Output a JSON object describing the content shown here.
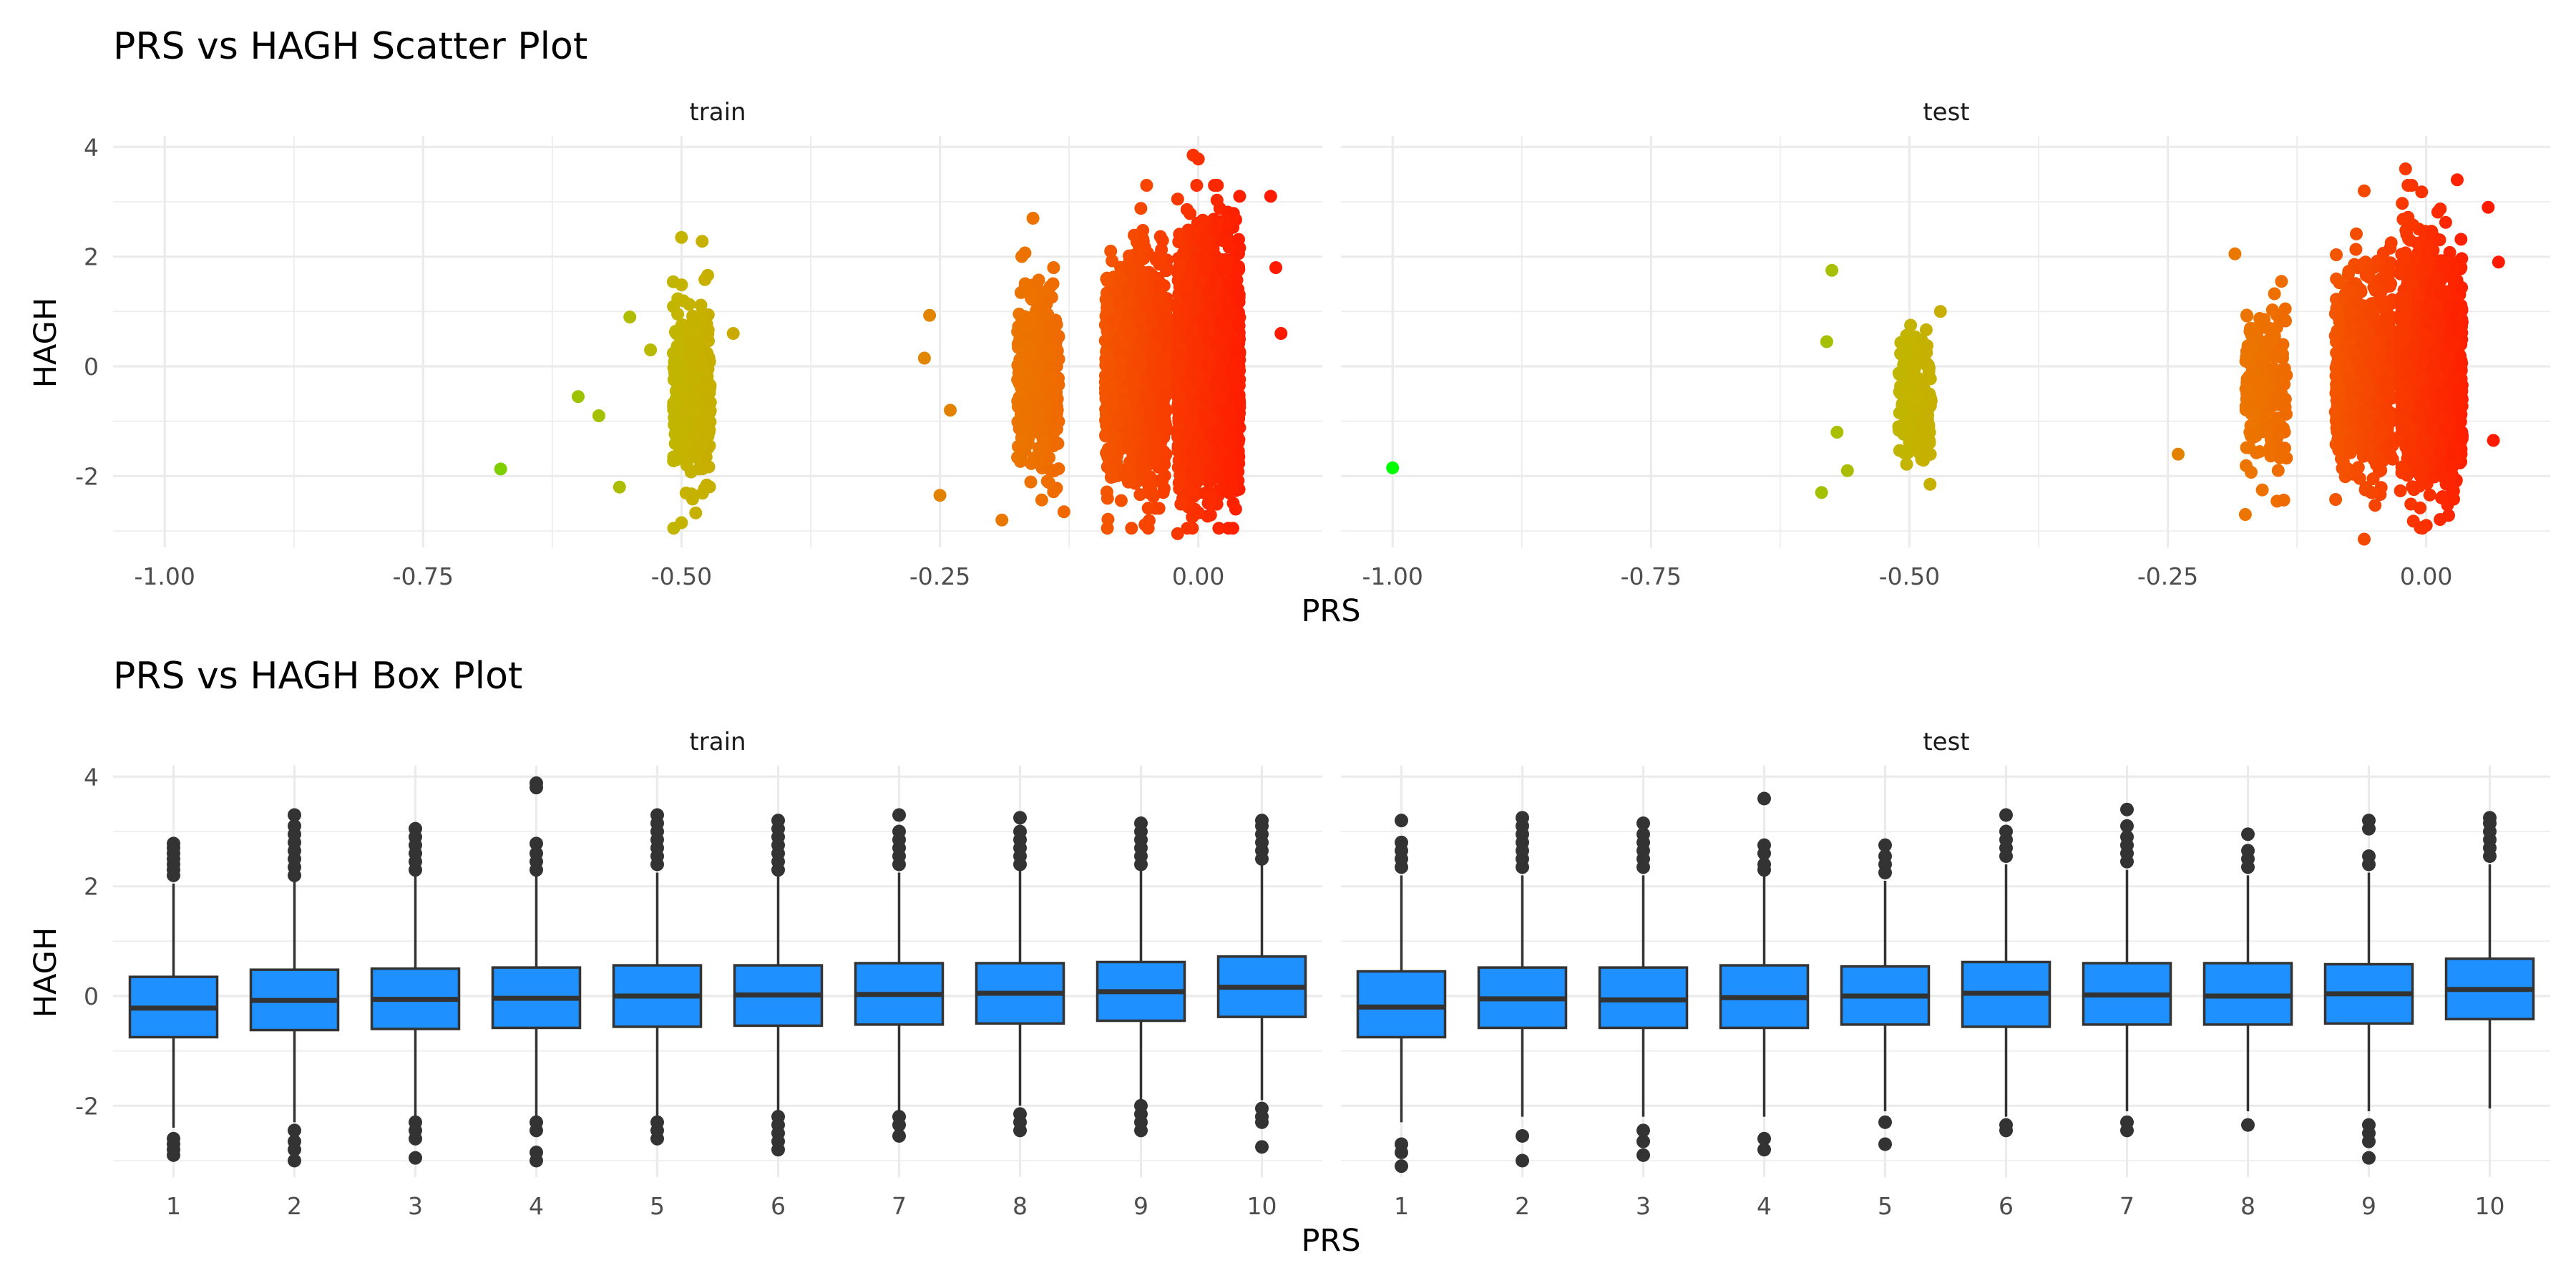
{
  "figure": {
    "panels_order": [
      "train",
      "test"
    ]
  },
  "chart_data": [
    {
      "type": "scatter",
      "title": "PRS vs HAGH Scatter Plot",
      "xlabel": "PRS",
      "ylabel": "HAGH",
      "facets": [
        "train",
        "test"
      ],
      "xlim": [
        -1.05,
        0.12
      ],
      "ylim": [
        -3.3,
        4.2
      ],
      "x_ticks": [
        -1.0,
        -0.75,
        -0.5,
        -0.25,
        0.0
      ],
      "x_tick_labels": [
        "-1.00",
        "-0.75",
        "-0.50",
        "-0.25",
        "0.00"
      ],
      "y_ticks": [
        -2,
        0,
        2,
        4
      ],
      "y_tick_labels": [
        "-2",
        "0",
        "2",
        "4"
      ],
      "color_mapping": "points colored by PRS: green (-1.0) through yellow-olive (-0.5) and orange to red (0.05)",
      "colors": {
        "low": "#00ff00",
        "mid": "#c4b400",
        "orange": "#ee7000",
        "high": "#ff1a00"
      },
      "grid": true,
      "legend": "none",
      "series": [
        {
          "name": "train",
          "clusters": [
            {
              "x_center": -0.49,
              "x_spread": 0.018,
              "y_mean": -0.5,
              "y_sd": 0.75,
              "n": 380
            },
            {
              "x_center": -0.155,
              "x_spread": 0.02,
              "y_mean": -0.3,
              "y_sd": 0.75,
              "n": 420
            },
            {
              "x_center": -0.06,
              "x_spread": 0.03,
              "y_mean": -0.1,
              "y_sd": 0.95,
              "n": 1400
            },
            {
              "x_center": 0.01,
              "x_spread": 0.03,
              "y_mean": 0.05,
              "y_sd": 1.0,
              "n": 2800
            }
          ],
          "points": [
            {
              "x": -0.675,
              "y": -1.87
            },
            {
              "x": -0.6,
              "y": -0.55
            },
            {
              "x": -0.58,
              "y": -0.9
            },
            {
              "x": -0.55,
              "y": 0.9
            },
            {
              "x": -0.56,
              "y": -2.2
            },
            {
              "x": -0.53,
              "y": 0.3
            },
            {
              "x": -0.5,
              "y": 2.35
            },
            {
              "x": -0.48,
              "y": 2.28
            },
            {
              "x": -0.5,
              "y": -2.85
            },
            {
              "x": -0.45,
              "y": 0.6
            },
            {
              "x": -0.26,
              "y": 0.93
            },
            {
              "x": -0.265,
              "y": 0.15
            },
            {
              "x": -0.24,
              "y": -0.8
            },
            {
              "x": -0.25,
              "y": -2.35
            },
            {
              "x": -0.19,
              "y": -2.8
            },
            {
              "x": -0.16,
              "y": 2.7
            },
            {
              "x": -0.14,
              "y": 1.8
            },
            {
              "x": -0.13,
              "y": -2.65
            },
            {
              "x": -0.05,
              "y": 3.3
            },
            {
              "x": -0.02,
              "y": 3.05
            },
            {
              "x": -0.02,
              "y": -3.05
            },
            {
              "x": -0.005,
              "y": 3.85
            },
            {
              "x": 0.0,
              "y": 3.78
            },
            {
              "x": 0.04,
              "y": 3.1
            },
            {
              "x": 0.075,
              "y": 1.8
            },
            {
              "x": 0.08,
              "y": 0.6
            },
            {
              "x": 0.07,
              "y": 3.1
            }
          ]
        },
        {
          "name": "test",
          "clusters": [
            {
              "x_center": -0.495,
              "x_spread": 0.016,
              "y_mean": -0.6,
              "y_sd": 0.6,
              "n": 160
            },
            {
              "x_center": -0.155,
              "x_spread": 0.02,
              "y_mean": -0.4,
              "y_sd": 0.7,
              "n": 200
            },
            {
              "x_center": -0.06,
              "x_spread": 0.028,
              "y_mean": -0.1,
              "y_sd": 0.9,
              "n": 700
            },
            {
              "x_center": 0.005,
              "x_spread": 0.03,
              "y_mean": 0.0,
              "y_sd": 1.0,
              "n": 1400
            }
          ],
          "points": [
            {
              "x": -1.0,
              "y": -1.85
            },
            {
              "x": -0.575,
              "y": 1.75
            },
            {
              "x": -0.58,
              "y": 0.45
            },
            {
              "x": -0.585,
              "y": -2.3
            },
            {
              "x": -0.56,
              "y": -1.9
            },
            {
              "x": -0.57,
              "y": -1.2
            },
            {
              "x": -0.48,
              "y": -2.15
            },
            {
              "x": -0.47,
              "y": 1.0
            },
            {
              "x": -0.24,
              "y": -1.6
            },
            {
              "x": -0.185,
              "y": 2.05
            },
            {
              "x": -0.175,
              "y": -2.7
            },
            {
              "x": -0.14,
              "y": 1.55
            },
            {
              "x": -0.06,
              "y": 3.2
            },
            {
              "x": -0.02,
              "y": 3.6
            },
            {
              "x": -0.06,
              "y": -3.15
            },
            {
              "x": 0.03,
              "y": 3.4
            },
            {
              "x": 0.06,
              "y": 2.9
            },
            {
              "x": 0.07,
              "y": 1.9
            },
            {
              "x": 0.065,
              "y": -1.35
            },
            {
              "x": 0.0,
              "y": -2.9
            }
          ]
        }
      ]
    },
    {
      "type": "box",
      "title": "PRS vs HAGH Box Plot",
      "xlabel": "PRS",
      "ylabel": "HAGH",
      "facets": [
        "train",
        "test"
      ],
      "categories": [
        "1",
        "2",
        "3",
        "4",
        "5",
        "6",
        "7",
        "8",
        "9",
        "10"
      ],
      "ylim": [
        -3.3,
        4.2
      ],
      "y_ticks": [
        -2,
        0,
        2,
        4
      ],
      "y_tick_labels": [
        "-2",
        "0",
        "2",
        "4"
      ],
      "box_color": "#1e90ff",
      "outline_color": "#333333",
      "grid": true,
      "legend": "none",
      "series": [
        {
          "name": "train",
          "boxes": [
            {
              "category": "1",
              "q1": -0.75,
              "median": -0.22,
              "q3": 0.35,
              "whisker_low": -2.4,
              "whisker_high": 2.05,
              "outliers": [
                2.2,
                2.3,
                2.4,
                2.5,
                2.6,
                2.7,
                2.78,
                -2.6,
                -2.7,
                -2.8,
                -2.9
              ]
            },
            {
              "category": "2",
              "q1": -0.62,
              "median": -0.08,
              "q3": 0.48,
              "whisker_low": -2.3,
              "whisker_high": 2.1,
              "outliers": [
                2.2,
                2.35,
                2.5,
                2.65,
                2.8,
                2.95,
                3.1,
                3.3,
                -2.45,
                -2.65,
                -2.8,
                -3.0
              ]
            },
            {
              "category": "3",
              "q1": -0.6,
              "median": -0.06,
              "q3": 0.5,
              "whisker_low": -2.2,
              "whisker_high": 2.2,
              "outliers": [
                2.3,
                2.45,
                2.6,
                2.75,
                2.9,
                3.05,
                -2.3,
                -2.45,
                -2.6,
                -2.95
              ]
            },
            {
              "category": "4",
              "q1": -0.58,
              "median": -0.04,
              "q3": 0.52,
              "whisker_low": -2.2,
              "whisker_high": 2.2,
              "outliers": [
                2.3,
                2.45,
                2.6,
                2.78,
                3.8,
                3.88,
                -2.3,
                -2.45,
                -2.85,
                -3.0
              ]
            },
            {
              "category": "5",
              "q1": -0.56,
              "median": 0.0,
              "q3": 0.56,
              "whisker_low": -2.2,
              "whisker_high": 2.25,
              "outliers": [
                2.4,
                2.55,
                2.7,
                2.85,
                3.0,
                3.15,
                3.3,
                -2.3,
                -2.45,
                -2.6
              ]
            },
            {
              "category": "6",
              "q1": -0.54,
              "median": 0.02,
              "q3": 0.56,
              "whisker_low": -2.1,
              "whisker_high": 2.2,
              "outliers": [
                2.3,
                2.45,
                2.6,
                2.75,
                2.9,
                3.05,
                3.2,
                -2.2,
                -2.35,
                -2.5,
                -2.65,
                -2.8
              ]
            },
            {
              "category": "7",
              "q1": -0.52,
              "median": 0.03,
              "q3": 0.6,
              "whisker_low": -2.1,
              "whisker_high": 2.25,
              "outliers": [
                2.4,
                2.55,
                2.7,
                2.85,
                3.0,
                3.3,
                -2.2,
                -2.35,
                -2.55
              ]
            },
            {
              "category": "8",
              "q1": -0.5,
              "median": 0.05,
              "q3": 0.6,
              "whisker_low": -2.0,
              "whisker_high": 2.3,
              "outliers": [
                2.4,
                2.55,
                2.7,
                2.85,
                3.0,
                3.25,
                -2.15,
                -2.3,
                -2.45
              ]
            },
            {
              "category": "9",
              "q1": -0.45,
              "median": 0.08,
              "q3": 0.62,
              "whisker_low": -1.9,
              "whisker_high": 2.3,
              "outliers": [
                2.4,
                2.55,
                2.7,
                2.85,
                3.0,
                3.15,
                -2.0,
                -2.15,
                -2.3,
                -2.45
              ]
            },
            {
              "category": "10",
              "q1": -0.38,
              "median": 0.16,
              "q3": 0.72,
              "whisker_low": -1.9,
              "whisker_high": 2.4,
              "outliers": [
                2.5,
                2.65,
                2.8,
                2.95,
                3.1,
                3.2,
                -2.05,
                -2.2,
                -2.3,
                -2.75
              ]
            }
          ]
        },
        {
          "name": "test",
          "boxes": [
            {
              "category": "1",
              "q1": -0.75,
              "median": -0.2,
              "q3": 0.45,
              "whisker_low": -2.3,
              "whisker_high": 2.2,
              "outliers": [
                2.35,
                2.5,
                2.65,
                2.8,
                3.2,
                -2.7,
                -2.85,
                -3.1
              ]
            },
            {
              "category": "2",
              "q1": -0.58,
              "median": -0.05,
              "q3": 0.52,
              "whisker_low": -2.2,
              "whisker_high": 2.2,
              "outliers": [
                2.35,
                2.5,
                2.65,
                2.8,
                2.95,
                3.1,
                3.25,
                -2.55,
                -3.0
              ]
            },
            {
              "category": "3",
              "q1": -0.58,
              "median": -0.07,
              "q3": 0.52,
              "whisker_low": -2.2,
              "whisker_high": 2.2,
              "outliers": [
                2.35,
                2.5,
                2.65,
                2.8,
                2.95,
                3.15,
                -2.45,
                -2.65,
                -2.9
              ]
            },
            {
              "category": "4",
              "q1": -0.58,
              "median": -0.03,
              "q3": 0.56,
              "whisker_low": -2.2,
              "whisker_high": 2.2,
              "outliers": [
                2.3,
                2.4,
                2.6,
                2.75,
                3.6,
                -2.6,
                -2.8
              ]
            },
            {
              "category": "5",
              "q1": -0.52,
              "median": 0.0,
              "q3": 0.54,
              "whisker_low": -2.1,
              "whisker_high": 2.1,
              "outliers": [
                2.25,
                2.4,
                2.55,
                2.75,
                -2.3,
                -2.7
              ]
            },
            {
              "category": "6",
              "q1": -0.56,
              "median": 0.05,
              "q3": 0.62,
              "whisker_low": -2.2,
              "whisker_high": 2.4,
              "outliers": [
                2.55,
                2.7,
                2.85,
                3.0,
                3.3,
                -2.35,
                -2.45
              ]
            },
            {
              "category": "7",
              "q1": -0.52,
              "median": 0.02,
              "q3": 0.6,
              "whisker_low": -2.1,
              "whisker_high": 2.3,
              "outliers": [
                2.45,
                2.6,
                2.75,
                2.9,
                3.1,
                3.4,
                -2.3,
                -2.45
              ]
            },
            {
              "category": "8",
              "q1": -0.52,
              "median": 0.0,
              "q3": 0.6,
              "whisker_low": -2.1,
              "whisker_high": 2.2,
              "outliers": [
                2.35,
                2.5,
                2.65,
                2.95,
                -2.35
              ]
            },
            {
              "category": "9",
              "q1": -0.5,
              "median": 0.04,
              "q3": 0.58,
              "whisker_low": -2.1,
              "whisker_high": 2.25,
              "outliers": [
                2.4,
                2.55,
                3.05,
                3.2,
                -2.35,
                -2.5,
                -2.65,
                -2.95
              ]
            },
            {
              "category": "10",
              "q1": -0.42,
              "median": 0.12,
              "q3": 0.68,
              "whisker_low": -2.05,
              "whisker_high": 2.4,
              "outliers": [
                2.55,
                2.7,
                2.85,
                3.0,
                3.15,
                3.25
              ]
            }
          ]
        }
      ]
    }
  ]
}
